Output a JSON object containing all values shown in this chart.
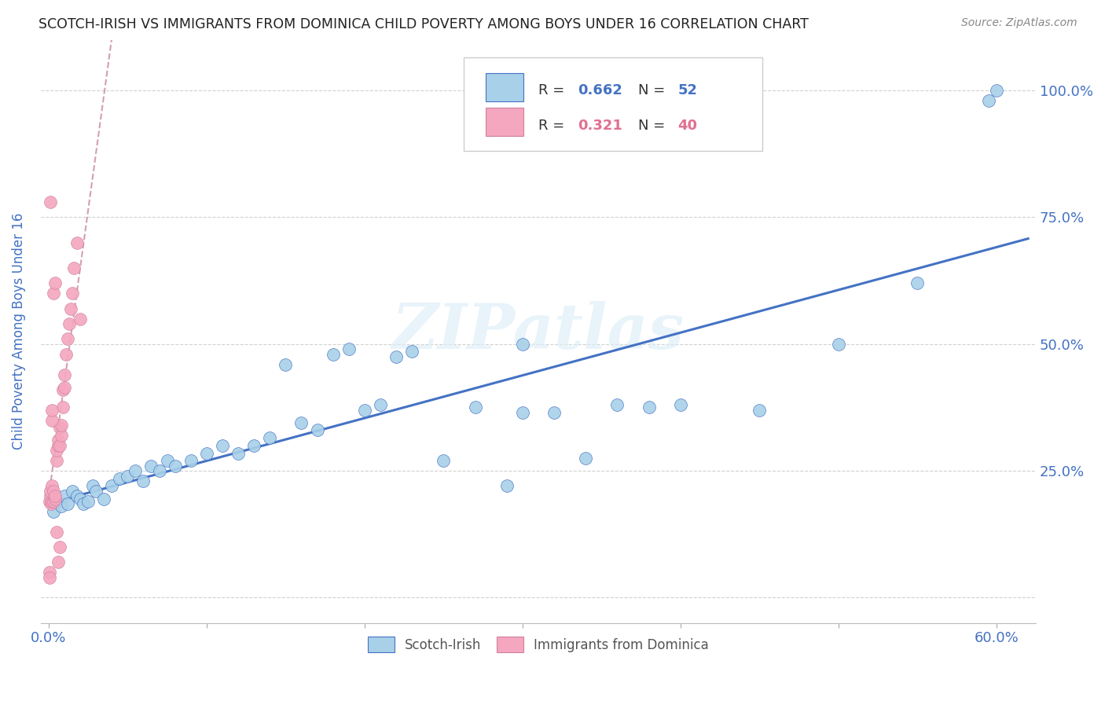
{
  "title": "SCOTCH-IRISH VS IMMIGRANTS FROM DOMINICA CHILD POVERTY AMONG BOYS UNDER 16 CORRELATION CHART",
  "source": "Source: ZipAtlas.com",
  "ylabel": "Child Poverty Among Boys Under 16",
  "blue_R": 0.662,
  "blue_N": 52,
  "pink_R": 0.321,
  "pink_N": 40,
  "legend_label_blue": "Scotch-Irish",
  "legend_label_pink": "Immigrants from Dominica",
  "watermark": "ZIPatlas",
  "scatter_color_blue": "#a8d0e8",
  "scatter_color_pink": "#f4a7be",
  "line_color_blue": "#4472c4",
  "line_color_pink": "#d4a0b0",
  "axis_color": "#4472c4",
  "text_color_dark": "#222222",
  "source_color": "#888888",
  "blue_x": [
    0.003,
    0.005,
    0.008,
    0.01,
    0.012,
    0.015,
    0.018,
    0.02,
    0.022,
    0.025,
    0.028,
    0.03,
    0.035,
    0.04,
    0.045,
    0.05,
    0.055,
    0.06,
    0.065,
    0.07,
    0.075,
    0.08,
    0.09,
    0.1,
    0.11,
    0.12,
    0.13,
    0.14,
    0.15,
    0.16,
    0.17,
    0.18,
    0.19,
    0.2,
    0.21,
    0.22,
    0.23,
    0.25,
    0.27,
    0.29,
    0.3,
    0.32,
    0.34,
    0.36,
    0.38,
    0.4,
    0.45,
    0.5,
    0.55,
    0.595,
    0.6,
    0.3
  ],
  "blue_y": [
    0.17,
    0.19,
    0.18,
    0.2,
    0.185,
    0.21,
    0.2,
    0.195,
    0.185,
    0.19,
    0.22,
    0.21,
    0.195,
    0.22,
    0.235,
    0.24,
    0.25,
    0.23,
    0.26,
    0.25,
    0.27,
    0.26,
    0.27,
    0.285,
    0.3,
    0.285,
    0.3,
    0.315,
    0.46,
    0.345,
    0.33,
    0.48,
    0.49,
    0.37,
    0.38,
    0.475,
    0.485,
    0.27,
    0.375,
    0.22,
    0.365,
    0.365,
    0.275,
    0.38,
    0.375,
    0.38,
    0.37,
    0.5,
    0.62,
    0.98,
    1.0,
    0.5
  ],
  "pink_x": [
    0.0005,
    0.001,
    0.001,
    0.0015,
    0.002,
    0.002,
    0.003,
    0.003,
    0.004,
    0.004,
    0.005,
    0.005,
    0.006,
    0.006,
    0.007,
    0.007,
    0.008,
    0.008,
    0.009,
    0.009,
    0.01,
    0.01,
    0.011,
    0.012,
    0.013,
    0.014,
    0.015,
    0.016,
    0.018,
    0.02,
    0.001,
    0.002,
    0.002,
    0.003,
    0.004,
    0.005,
    0.006,
    0.007,
    0.0005,
    0.0005
  ],
  "pink_y": [
    0.19,
    0.2,
    0.21,
    0.185,
    0.22,
    0.19,
    0.19,
    0.21,
    0.195,
    0.2,
    0.27,
    0.29,
    0.3,
    0.31,
    0.3,
    0.335,
    0.32,
    0.34,
    0.375,
    0.41,
    0.415,
    0.44,
    0.48,
    0.51,
    0.54,
    0.57,
    0.6,
    0.65,
    0.7,
    0.55,
    0.78,
    0.35,
    0.37,
    0.6,
    0.62,
    0.13,
    0.07,
    0.1,
    0.05,
    0.04
  ]
}
